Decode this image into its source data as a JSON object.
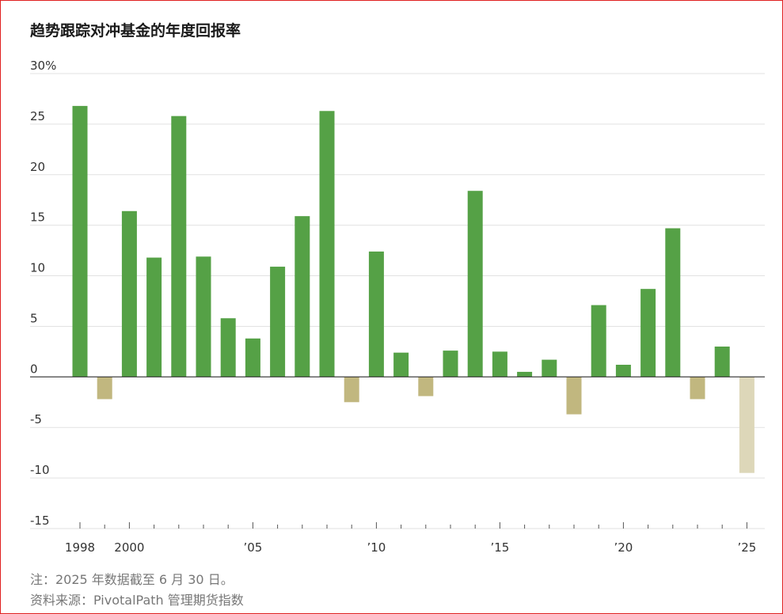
{
  "title": "趋势跟踪对冲基金的年度回报率",
  "footnote": "注：2025 年数据截至 6 月 30 日。",
  "source": "资料来源：PivotalPath 管理期货指数",
  "colors": {
    "positive": "#55a146",
    "negative": "#c1b77f",
    "negative_partial": "#ddd7b9",
    "border": "#e02020"
  },
  "chart_data": {
    "type": "bar",
    "title": "趋势跟踪对冲基金的年度回报率",
    "ylim": [
      -15,
      30
    ],
    "yticks": [
      30,
      25,
      20,
      15,
      10,
      5,
      0,
      -5,
      -10,
      -15
    ],
    "ytick_labels": [
      "30%",
      "25",
      "20",
      "15",
      "10",
      "5",
      "0",
      "-5",
      "-10",
      "-15"
    ],
    "xtick_labels": [
      {
        "year": 1998,
        "label": "1998"
      },
      {
        "year": 2000,
        "label": "2000"
      },
      {
        "year": 2005,
        "label": "’05"
      },
      {
        "year": 2010,
        "label": "’10"
      },
      {
        "year": 2015,
        "label": "’15"
      },
      {
        "year": 2020,
        "label": "’20"
      },
      {
        "year": 2025,
        "label": "’25"
      }
    ],
    "grid": true,
    "categories": [
      1998,
      1999,
      2000,
      2001,
      2002,
      2003,
      2004,
      2005,
      2006,
      2007,
      2008,
      2009,
      2010,
      2011,
      2012,
      2013,
      2014,
      2015,
      2016,
      2017,
      2018,
      2019,
      2020,
      2021,
      2022,
      2023,
      2024,
      2025
    ],
    "values": [
      26.8,
      -2.2,
      16.4,
      11.8,
      25.8,
      11.9,
      5.8,
      3.8,
      10.9,
      15.9,
      26.3,
      -2.5,
      12.4,
      2.4,
      -1.9,
      2.6,
      18.4,
      2.5,
      0.5,
      1.7,
      -3.7,
      7.1,
      1.2,
      8.7,
      14.7,
      -2.2,
      3.0,
      -9.5
    ],
    "partial_year": 2025
  }
}
